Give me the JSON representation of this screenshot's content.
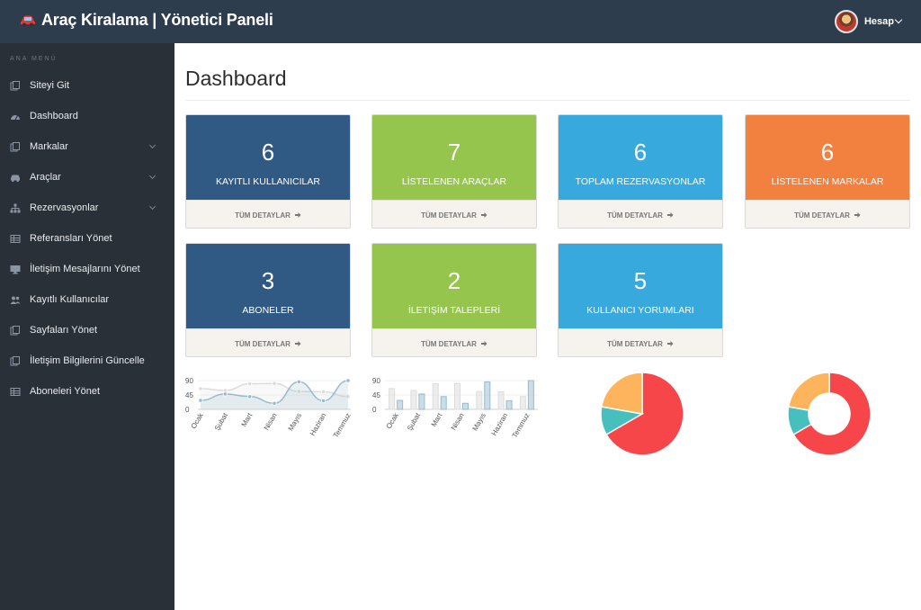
{
  "app": {
    "title": "Araç Kiralama | Yönetici Paneli",
    "account_label": "Hesap"
  },
  "sidebar": {
    "section_title": "ANA MENÜ",
    "items": [
      {
        "label": "Siteyi Git",
        "icon": "copy-icon",
        "has_submenu": false
      },
      {
        "label": "Dashboard",
        "icon": "dashboard-icon",
        "has_submenu": false
      },
      {
        "label": "Markalar",
        "icon": "copy-icon",
        "has_submenu": true
      },
      {
        "label": "Araçlar",
        "icon": "car-icon",
        "has_submenu": true
      },
      {
        "label": "Rezervasyonlar",
        "icon": "sitemap-icon",
        "has_submenu": true
      },
      {
        "label": "Referansları Yönet",
        "icon": "table-icon",
        "has_submenu": false
      },
      {
        "label": "İletişim Mesajlarını Yönet",
        "icon": "desktop-icon",
        "has_submenu": false
      },
      {
        "label": "Kayıtlı Kullanıcılar",
        "icon": "users-icon",
        "has_submenu": false
      },
      {
        "label": "Sayfaları Yönet",
        "icon": "copy-icon",
        "has_submenu": false
      },
      {
        "label": "İletişim Bilgilerini Güncelle",
        "icon": "copy-icon",
        "has_submenu": false
      },
      {
        "label": "Aboneleri Yönet",
        "icon": "table-icon",
        "has_submenu": false
      }
    ]
  },
  "page": {
    "title": "Dashboard"
  },
  "cards": [
    {
      "value": "6",
      "label": "KAYITLI KULLANICILAR",
      "link": "TÜM DETAYLAR",
      "color": "#305983"
    },
    {
      "value": "7",
      "label": "LİSTELENEN ARAÇLAR",
      "link": "TÜM DETAYLAR",
      "color": "#95c54c"
    },
    {
      "value": "6",
      "label": "TOPLAM REZERVASYONLAR",
      "link": "TÜM DETAYLAR",
      "color": "#37a9dd"
    },
    {
      "value": "6",
      "label": "LİSTELENEN MARKALAR",
      "link": "TÜM DETAYLAR",
      "color": "#f28140"
    },
    {
      "value": "3",
      "label": "ABONELER",
      "link": "TÜM DETAYLAR",
      "color": "#305983"
    },
    {
      "value": "2",
      "label": "İLETİŞİM TALEPLERİ",
      "link": "TÜM DETAYLAR",
      "color": "#95c54c"
    },
    {
      "value": "5",
      "label": "KULLANICI YORUMLARI",
      "link": "TÜM DETAYLAR",
      "color": "#37a9dd"
    }
  ],
  "chart_data": [
    {
      "type": "line",
      "categories": [
        "Ocak",
        "Şubat",
        "Mart",
        "Nisan",
        "Mayıs",
        "Haziran",
        "Temmuz"
      ],
      "yticks": [
        "0",
        "45",
        "90"
      ],
      "ylim": [
        0,
        90
      ],
      "series": [
        {
          "values": [
            65,
            59,
            80,
            81,
            56,
            55,
            40
          ],
          "color": "#dcdcdc"
        },
        {
          "values": [
            28,
            48,
            40,
            19,
            86,
            27,
            90
          ],
          "color": "#97bbcd"
        }
      ]
    },
    {
      "type": "bar",
      "categories": [
        "Ocak",
        "Şubat",
        "Mart",
        "Nisan",
        "Mayıs",
        "Haziran",
        "Temmuz"
      ],
      "yticks": [
        "0",
        "45",
        "90"
      ],
      "ylim": [
        0,
        90
      ],
      "series": [
        {
          "values": [
            65,
            59,
            80,
            81,
            56,
            55,
            40
          ],
          "color": "#dcdcdc"
        },
        {
          "values": [
            28,
            48,
            40,
            19,
            86,
            27,
            90
          ],
          "color": "#97bbcd"
        }
      ]
    },
    {
      "type": "pie",
      "values": [
        300,
        50,
        100
      ],
      "colors": [
        "#f7464a",
        "#46bfbd",
        "#fdb45c"
      ]
    },
    {
      "type": "pie",
      "donut": true,
      "values": [
        300,
        50,
        100
      ],
      "colors": [
        "#f7464a",
        "#46bfbd",
        "#fdb45c"
      ]
    }
  ]
}
